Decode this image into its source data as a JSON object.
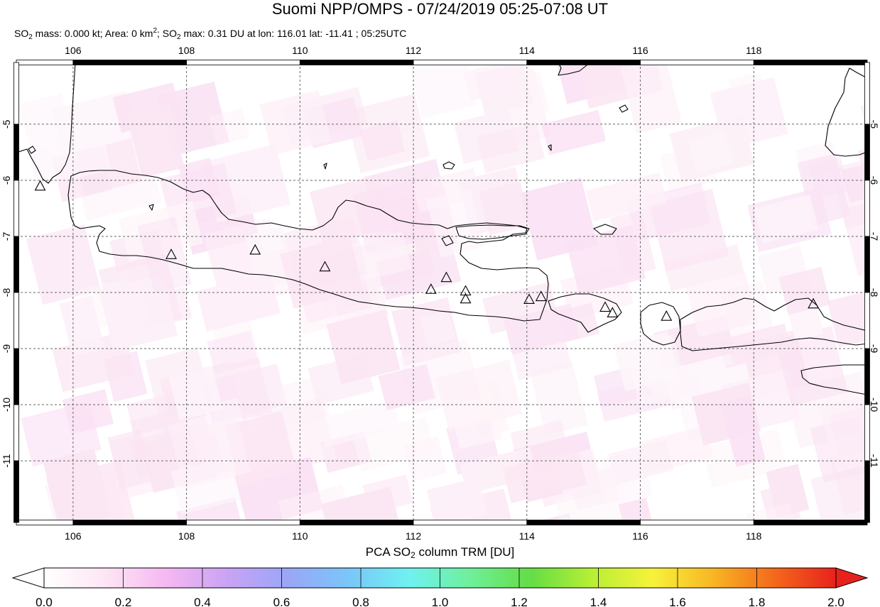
{
  "header": {
    "title": "Suomi NPP/OMPS - 07/24/2019 05:25-07:08 UT",
    "subtitle": {
      "mass_prefix": "SO",
      "mass_sub": "2",
      "mass_text": " mass: 0.000 kt; Area: 0 km",
      "area_sup": "2",
      "max_prefix": "; SO",
      "max_sub": "2",
      "max_text": " max: 0.31 DU at lon: 116.01 lat: -11.41 ; 05:25UTC"
    }
  },
  "map": {
    "lon_range": [
      105,
      120
    ],
    "lat_range": [
      -12.1,
      -3.9
    ],
    "x_ticks": [
      "106",
      "108",
      "110",
      "112",
      "114",
      "116",
      "118"
    ],
    "x_tick_values": [
      106,
      108,
      110,
      112,
      114,
      116,
      118
    ],
    "y_ticks": [
      "-5",
      "-6",
      "-7",
      "-8",
      "-9",
      "-10",
      "-11"
    ],
    "y_tick_values": [
      -5,
      -6,
      -7,
      -8,
      -9,
      -10,
      -11
    ],
    "grid": "dashed",
    "volcano_marker": "triangle-icon",
    "volcanoes": [
      {
        "lon": 105.42,
        "lat": -6.1
      },
      {
        "lon": 107.73,
        "lat": -7.32
      },
      {
        "lon": 109.21,
        "lat": -7.24
      },
      {
        "lon": 110.44,
        "lat": -7.54
      },
      {
        "lon": 112.31,
        "lat": -7.94
      },
      {
        "lon": 112.58,
        "lat": -7.73
      },
      {
        "lon": 112.92,
        "lat": -7.97
      },
      {
        "lon": 112.92,
        "lat": -8.11
      },
      {
        "lon": 114.04,
        "lat": -8.12
      },
      {
        "lon": 114.25,
        "lat": -8.07
      },
      {
        "lon": 115.38,
        "lat": -8.26
      },
      {
        "lon": 115.51,
        "lat": -8.36
      },
      {
        "lon": 116.46,
        "lat": -8.42
      },
      {
        "lon": 119.05,
        "lat": -8.2
      }
    ]
  },
  "colorbar": {
    "title_prefix": "PCA SO",
    "title_sub": "2",
    "title_suffix": " column TRM [DU]",
    "range": [
      0.0,
      2.0
    ],
    "tick_labels": [
      "0.0",
      "0.2",
      "0.4",
      "0.6",
      "0.8",
      "1.0",
      "1.2",
      "1.4",
      "1.6",
      "1.8",
      "2.0"
    ],
    "colors": [
      "#ffffff",
      "#fde6f4",
      "#f6b8f2",
      "#c9a3f5",
      "#9aa6f7",
      "#7ac6f8",
      "#6ff1f1",
      "#6ef09a",
      "#65dd45",
      "#b8ef35",
      "#f7f23a",
      "#f8b424",
      "#f4681c",
      "#e8211d"
    ]
  }
}
